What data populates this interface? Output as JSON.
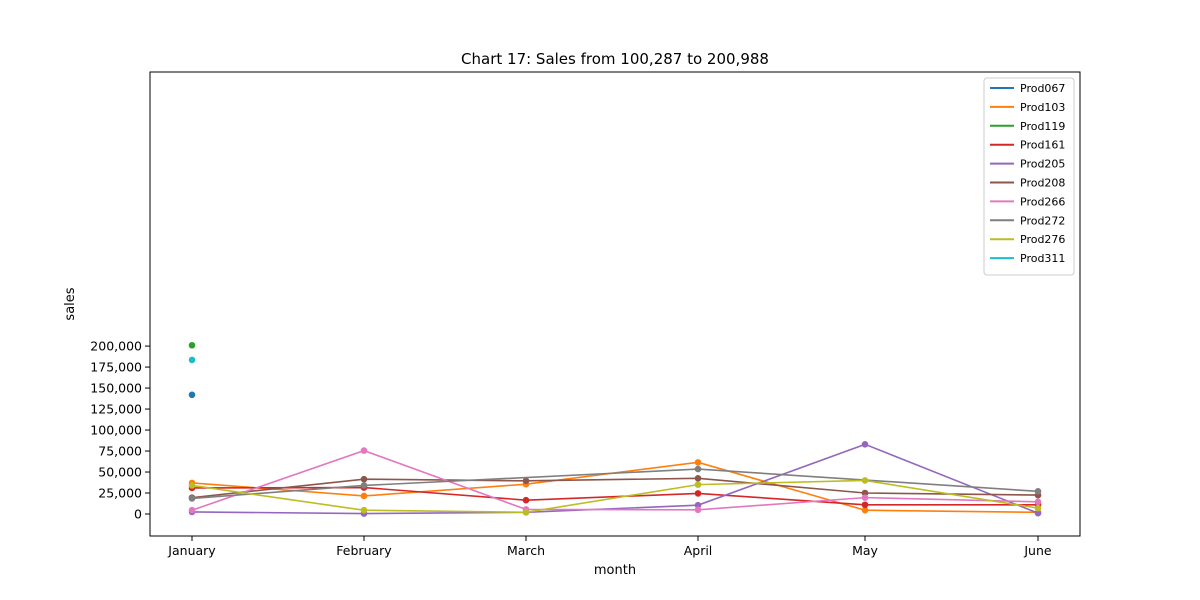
{
  "chart_data": {
    "type": "line",
    "title": "Chart 17: Sales from 100,287 to 200,988",
    "xlabel": "month",
    "ylabel": "sales",
    "categories": [
      "January",
      "February",
      "March",
      "April",
      "May",
      "June"
    ],
    "ylim": [
      -8000,
      211000
    ],
    "yticks": [
      0,
      25000,
      50000,
      75000,
      100000,
      125000,
      150000,
      175000,
      200000
    ],
    "ytick_labels": [
      "0",
      "25,000",
      "50,000",
      "75,000",
      "100,000",
      "125,000",
      "150,000",
      "175,000",
      "200,000"
    ],
    "grid": false,
    "legend_position": "top-right",
    "series": [
      {
        "name": "Prod067",
        "color": "#1f77b4",
        "values": [
          142000,
          null,
          null,
          null,
          null,
          null
        ]
      },
      {
        "name": "Prod103",
        "color": "#ff7f0e",
        "values": [
          37000,
          21500,
          35500,
          61500,
          4500,
          2000
        ]
      },
      {
        "name": "Prod119",
        "color": "#2ca02c",
        "values": [
          201000,
          null,
          null,
          null,
          null,
          null
        ]
      },
      {
        "name": "Prod161",
        "color": "#d62728",
        "values": [
          31000,
          31500,
          16500,
          24500,
          11000,
          11000
        ]
      },
      {
        "name": "Prod205",
        "color": "#9467bd",
        "values": [
          2500,
          500,
          2000,
          10500,
          83000,
          1000
        ]
      },
      {
        "name": "Prod208",
        "color": "#8c564b",
        "values": [
          19500,
          41500,
          39500,
          42500,
          25000,
          22500
        ]
      },
      {
        "name": "Prod266",
        "color": "#e377c2",
        "values": [
          4500,
          75500,
          5500,
          5000,
          19500,
          14500
        ]
      },
      {
        "name": "Prod272",
        "color": "#7f7f7f",
        "values": [
          18500,
          34000,
          null,
          53500,
          null,
          27000
        ]
      },
      {
        "name": "Prod276",
        "color": "#bcbd22",
        "values": [
          34000,
          4500,
          2000,
          35000,
          40000,
          7000
        ]
      },
      {
        "name": "Prod311",
        "color": "#17becf",
        "values": [
          183500,
          null,
          null,
          null,
          null,
          null
        ]
      }
    ]
  }
}
